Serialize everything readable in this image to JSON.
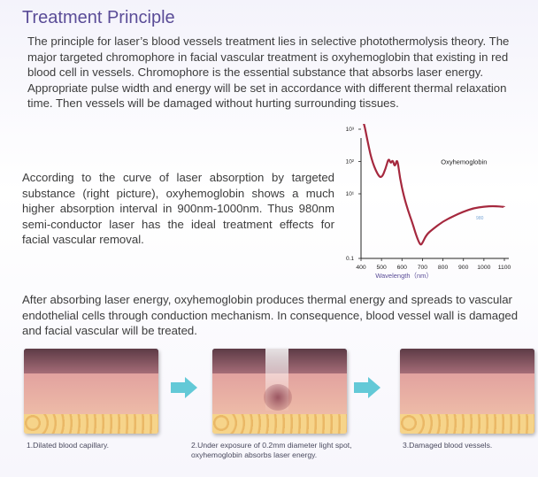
{
  "title": "Treatment Principle",
  "paragraph1": "The principle for laser’s blood vessels treatment lies in selective photothermolysis theory. The major targeted chromophore in facial vascular treatment is oxyhemoglobin that existing in red blood cell in vessels. Chromophore is the essential substance that absorbs laser energy. Appropriate pulse width and energy will be set in accordance with different thermal relaxation time. Then vessels will be damaged without hurting surrounding tissues.",
  "paragraph2": "According to the curve of laser absorption by targeted substance (right picture), oxyhemoglobin shows a much higher absorption interval in 900nm-1000nm. Thus 980nm semi-conductor laser has the ideal treatment effects for facial vascular removal.",
  "paragraph3": "After absorbing laser energy, oxyhemoglobin produces thermal energy and spreads to vascular endothelial cells through conduction mechanism. In consequence, blood vessel wall is damaged and facial vascular will be treated.",
  "colors": {
    "title": "#5a4c97",
    "curve": "#a5283e",
    "arrow": "#63c9d7",
    "axis_label": "#5a4c97"
  },
  "chart_data": {
    "type": "line",
    "title": "",
    "xlabel": "Wavelength（nm）",
    "ylabel": "",
    "xlim": [
      400,
      1100
    ],
    "ylim_log": [
      0.1,
      1000
    ],
    "y_ticks": [
      "10³",
      "10²",
      "10¹",
      "0.1"
    ],
    "x_ticks": [
      "400",
      "500",
      "600",
      "700",
      "800",
      "900",
      "1000",
      "1100"
    ],
    "annotation": "980",
    "annotation_x": 980,
    "series": [
      {
        "name": "Oxyhemoglobin",
        "x": [
          400,
          415,
          430,
          450,
          480,
          500,
          520,
          535,
          545,
          555,
          565,
          577,
          590,
          610,
          630,
          650,
          670,
          690,
          700,
          720,
          750,
          800,
          850,
          900,
          950,
          1000,
          1050,
          1100
        ],
        "y": [
          2500,
          1500,
          500,
          120,
          40,
          30,
          60,
          130,
          85,
          115,
          65,
          130,
          30,
          8,
          3,
          1.3,
          0.5,
          0.25,
          0.3,
          0.55,
          0.8,
          1.4,
          2.0,
          2.8,
          3.6,
          4.0,
          4.2,
          3.9
        ]
      }
    ]
  },
  "steps": [
    {
      "caption": "1.Dilated blood capillary."
    },
    {
      "caption": "2.Under exposure of 0.2mm diameter light spot, oxyhemoglobin absorbs laser energy."
    },
    {
      "caption": "3.Damaged blood vessels."
    }
  ]
}
